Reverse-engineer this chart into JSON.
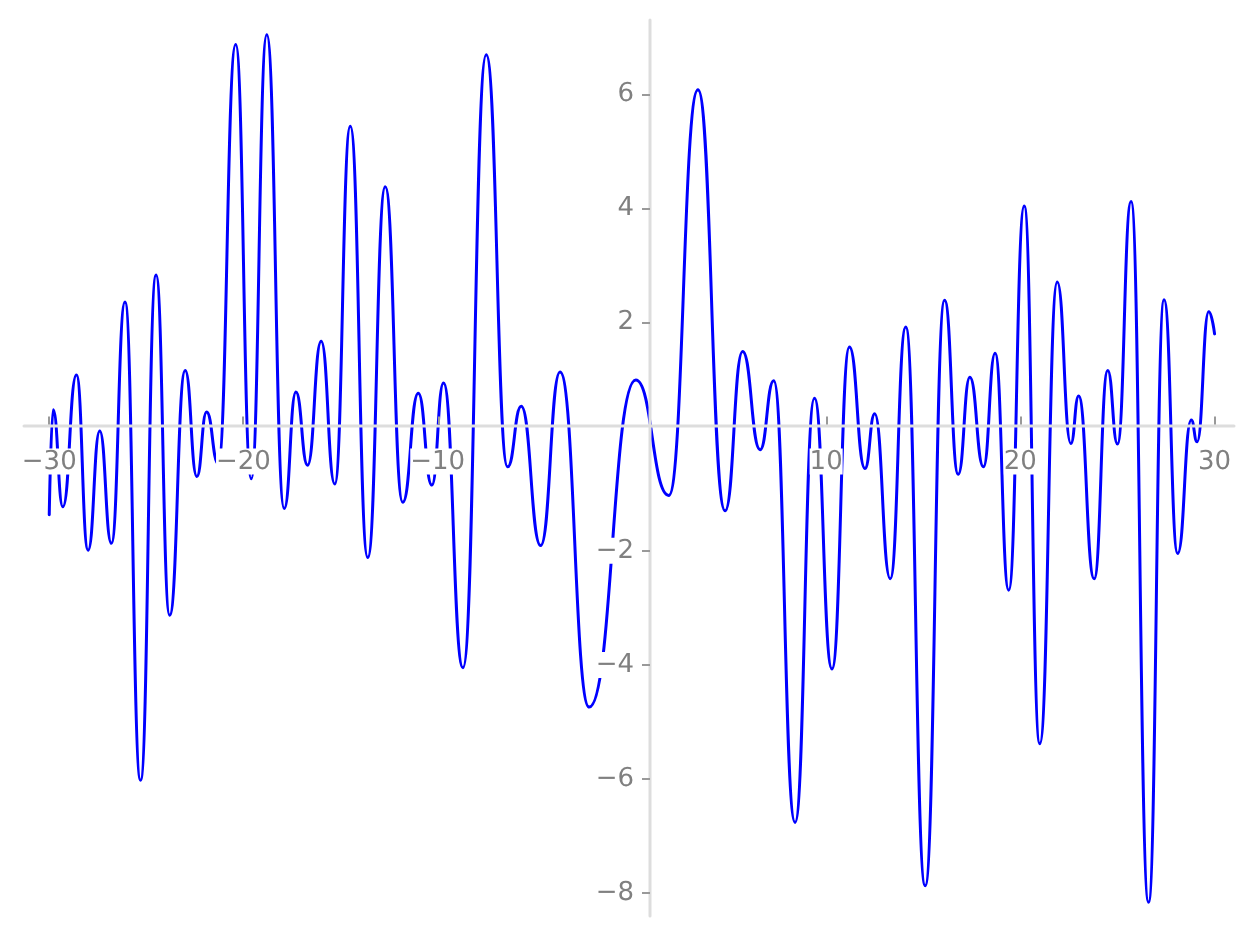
{
  "chart_data": {
    "type": "line",
    "xlim": [
      -31.3,
      31
    ],
    "ylim": [
      -8.4,
      7.3
    ],
    "xticks": [
      {
        "value": -30,
        "label": "−30"
      },
      {
        "value": -20,
        "label": "−20"
      },
      {
        "value": -10,
        "label": "−10"
      },
      10,
      20,
      30
    ],
    "yticks": [
      {
        "value": -8,
        "label": "−8"
      },
      {
        "value": -6,
        "label": "−6"
      },
      {
        "value": -4,
        "label": "−4"
      },
      {
        "value": -2,
        "label": "−2"
      },
      2,
      4,
      6
    ],
    "grid": false,
    "marker": "none",
    "line_style": "solid",
    "series": [
      {
        "color": "#0000ff",
        "x": [
          -30,
          -29.8,
          -29.3,
          -28.6,
          -28.0,
          -27.4,
          -26.8,
          -26.1,
          -25.3,
          -24.5,
          -23.8,
          -23.0,
          -22.4,
          -21.9,
          -21.3,
          -20.4,
          -19.6,
          -18.8,
          -17.9,
          -17.3,
          -16.7,
          -16.0,
          -15.3,
          -14.5,
          -13.6,
          -12.7,
          -11.8,
          -11.0,
          -10.3,
          -9.7,
          -8.7,
          -7.5,
          -6.4,
          -5.7,
          -4.7,
          -3.7,
          -2.2,
          0.2,
          1.9,
          3.4,
          4.8,
          5.7,
          6.6,
          7.3,
          8.4,
          9.4,
          10.3,
          11.2,
          12.0,
          12.5,
          13.3,
          14.1,
          15.1,
          16.1,
          16.8,
          17.4,
          18.1,
          18.7,
          19.4,
          20.2,
          21.0,
          21.9,
          22.6,
          23.0,
          23.8,
          24.5,
          25.0,
          25.7,
          26.6,
          27.4,
          28.1,
          28.8,
          29.1,
          29.7,
          30
        ],
        "values": [
          -1.37,
          0.47,
          -1.23,
          1.08,
          -1.99,
          0.1,
          -1.87,
          2.36,
          -6.02,
          2.83,
          -3.13,
          1.16,
          -0.7,
          0.43,
          -0.47,
          6.87,
          -0.74,
          7.04,
          -1.26,
          0.78,
          -0.5,
          1.67,
          -0.83,
          5.44,
          -2.12,
          4.38,
          -1.15,
          0.76,
          -0.85,
          0.94,
          -4.05,
          6.69,
          -0.53,
          0.53,
          -1.91,
          1.13,
          -4.74,
          0.99,
          -1.03,
          6.08,
          -1.3,
          1.49,
          -0.23,
          0.98,
          -6.76,
          0.67,
          -4.07,
          1.57,
          -0.56,
          0.4,
          -2.49,
          1.92,
          -7.87,
          2.39,
          -0.66,
          1.04,
          -0.53,
          1.46,
          -2.69,
          4.04,
          -5.38,
          2.71,
          -0.12,
          0.71,
          -2.49,
          1.16,
          -0.13,
          4.12,
          -8.16,
          2.4,
          -2.05,
          0.29,
          -0.09,
          2.19,
          1.8
        ]
      }
    ]
  }
}
